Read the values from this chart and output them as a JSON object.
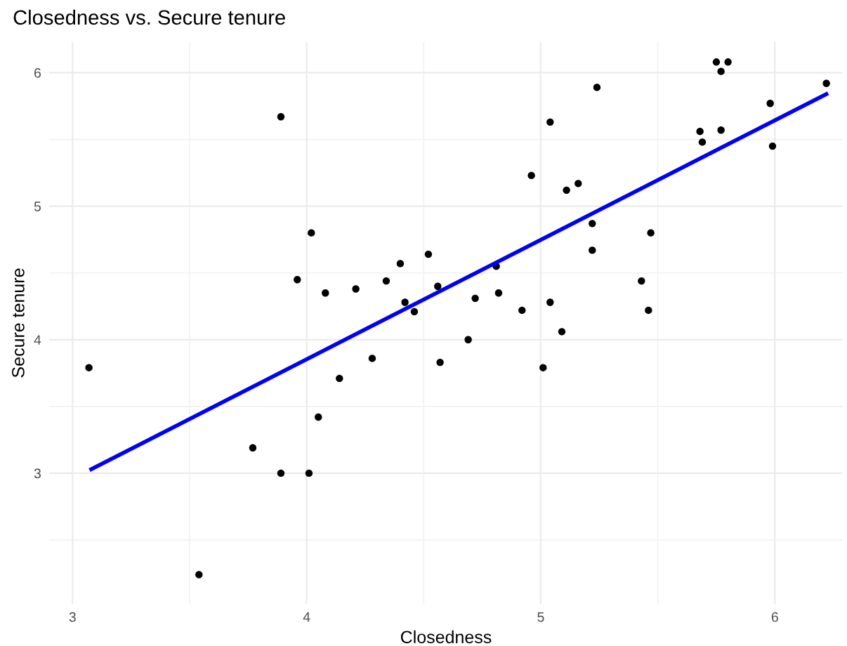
{
  "chart_data": {
    "type": "scatter",
    "title": "Closedness vs. Secure tenure",
    "xlabel": "Closedness",
    "ylabel": "Secure tenure",
    "xlim": [
      2.9,
      6.29
    ],
    "ylim": [
      2.02,
      6.23
    ],
    "xticks": [
      3,
      4,
      5,
      6
    ],
    "yticks": [
      3,
      4,
      5,
      6
    ],
    "grid": true,
    "series": [
      {
        "marker": "circle",
        "color": "#000000",
        "x": [
          3.07,
          3.54,
          3.89,
          3.77,
          3.89,
          4.01,
          3.96,
          4.02,
          4.08,
          4.05,
          4.14,
          4.21,
          4.28,
          4.34,
          4.4,
          4.42,
          4.46,
          4.52,
          4.56,
          4.57,
          4.69,
          4.72,
          4.81,
          4.82,
          4.92,
          4.96,
          5.01,
          5.04,
          5.04,
          5.09,
          5.11,
          5.16,
          5.22,
          5.22,
          5.24,
          5.43,
          5.46,
          5.47,
          5.68,
          5.69,
          5.75,
          5.77,
          5.77,
          5.8,
          5.98,
          5.99,
          6.22
        ],
        "values": [
          3.79,
          2.24,
          5.67,
          3.19,
          3.0,
          3.0,
          4.45,
          4.8,
          4.35,
          3.42,
          3.71,
          4.38,
          3.86,
          4.44,
          4.57,
          4.28,
          4.21,
          4.64,
          4.4,
          3.83,
          4.0,
          4.31,
          4.55,
          4.35,
          4.22,
          5.23,
          3.79,
          5.63,
          4.28,
          4.06,
          5.12,
          5.17,
          4.87,
          4.67,
          5.89,
          4.44,
          4.22,
          4.8,
          5.56,
          5.48,
          6.08,
          6.01,
          5.57,
          6.08,
          5.77,
          5.45,
          5.92
        ]
      },
      {
        "type": "line",
        "color": "#0000ff",
        "x": [
          3.08,
          6.22
        ],
        "values": [
          3.03,
          5.84
        ]
      }
    ]
  }
}
